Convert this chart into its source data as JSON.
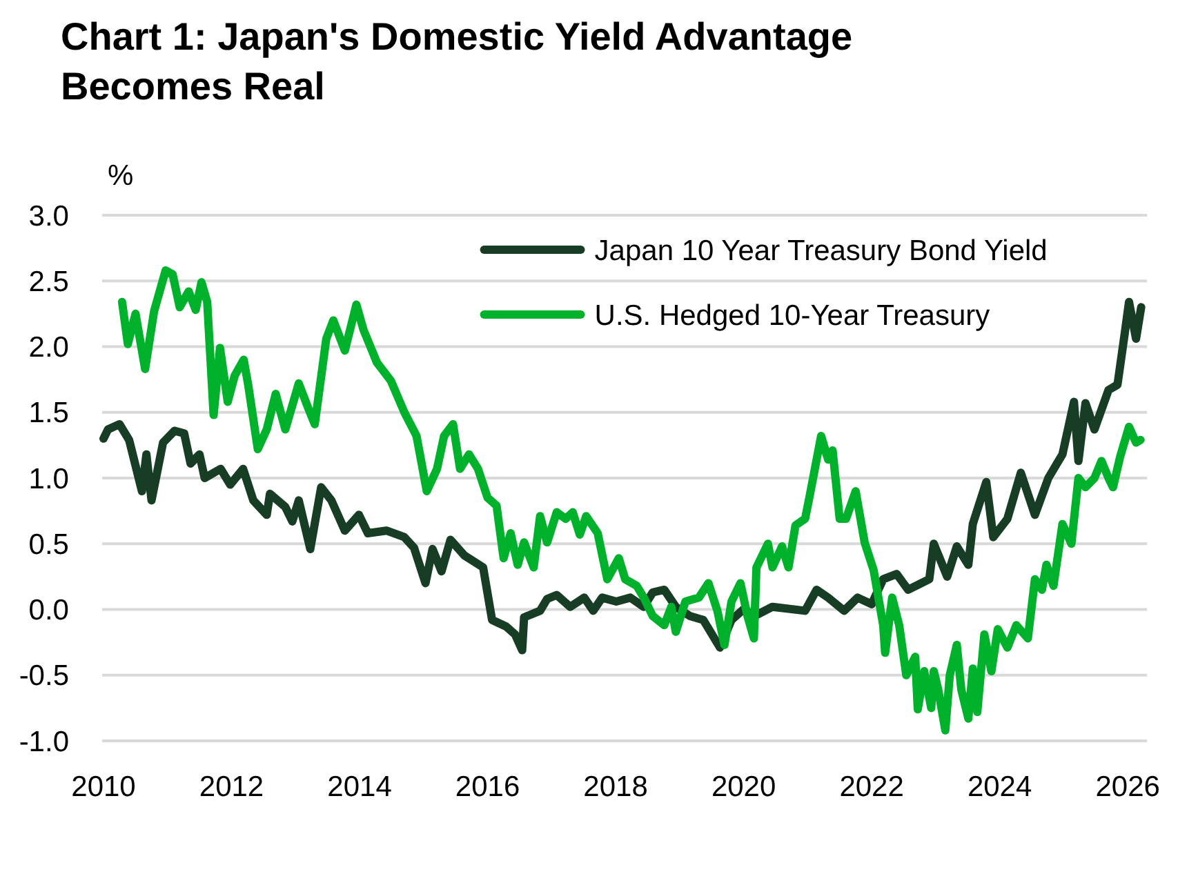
{
  "chart_data": {
    "type": "line",
    "title": "Chart 1: Japan's Domestic Yield Advantage Becomes Real",
    "ylabel": "%",
    "xlim": [
      2010,
      2026.3
    ],
    "xticks": [
      2010,
      2012,
      2014,
      2016,
      2018,
      2020,
      2022,
      2024,
      2026
    ],
    "ylim": [
      -1.0,
      3.0
    ],
    "yticks": [
      {
        "value": -1,
        "label": "-1.0"
      },
      -0.5,
      {
        "value": 0,
        "label": "0.0"
      },
      0.5,
      {
        "value": 1,
        "label": "1.0"
      },
      1.5,
      {
        "value": 2,
        "label": "2.0"
      },
      2.5,
      {
        "value": 3,
        "label": "3.0"
      }
    ],
    "grid": "y",
    "legend": "top right",
    "series": [
      {
        "name": "Japan 10 Year Treasury Bond Yield",
        "color": "#183d25",
        "x": [
          2010.0,
          2010.07,
          2010.25,
          2010.4,
          2010.6,
          2010.67,
          2010.75,
          2010.93,
          2011.11,
          2011.26,
          2011.36,
          2011.5,
          2011.58,
          2011.83,
          2011.98,
          2012.18,
          2012.34,
          2012.55,
          2012.6,
          2012.84,
          2012.95,
          2013.05,
          2013.23,
          2013.4,
          2013.56,
          2013.77,
          2013.99,
          2014.13,
          2014.42,
          2014.7,
          2014.85,
          2015.03,
          2015.14,
          2015.28,
          2015.42,
          2015.64,
          2015.93,
          2016.07,
          2016.29,
          2016.43,
          2016.54,
          2016.57,
          2016.82,
          2016.93,
          2017.08,
          2017.29,
          2017.51,
          2017.65,
          2017.79,
          2018.01,
          2018.23,
          2018.44,
          2018.58,
          2018.76,
          2018.94,
          2019.16,
          2019.37,
          2019.63,
          2019.81,
          2020.02,
          2020.13,
          2020.45,
          2020.96,
          2021.14,
          2021.32,
          2021.57,
          2021.78,
          2022.0,
          2022.18,
          2022.39,
          2022.57,
          2022.9,
          2022.97,
          2023.18,
          2023.33,
          2023.51,
          2023.58,
          2023.79,
          2023.9,
          2024.12,
          2024.33,
          2024.55,
          2024.76,
          2024.98,
          2025.16,
          2025.23,
          2025.34,
          2025.48,
          2025.7,
          2025.84,
          2025.95,
          2026.02,
          2026.13,
          2026.21
        ],
        "values": [
          1.3,
          1.37,
          1.41,
          1.29,
          0.9,
          1.18,
          0.83,
          1.27,
          1.36,
          1.34,
          1.11,
          1.18,
          1.0,
          1.07,
          0.95,
          1.07,
          0.83,
          0.72,
          0.88,
          0.78,
          0.67,
          0.83,
          0.46,
          0.93,
          0.83,
          0.6,
          0.72,
          0.58,
          0.6,
          0.55,
          0.47,
          0.2,
          0.46,
          0.29,
          0.53,
          0.41,
          0.32,
          -0.08,
          -0.13,
          -0.19,
          -0.31,
          -0.06,
          -0.01,
          0.08,
          0.11,
          0.02,
          0.09,
          -0.01,
          0.09,
          0.06,
          0.09,
          0.02,
          0.13,
          0.15,
          0.02,
          -0.05,
          -0.08,
          -0.29,
          -0.08,
          0.01,
          -0.06,
          0.02,
          -0.01,
          0.15,
          0.09,
          -0.01,
          0.09,
          0.04,
          0.23,
          0.27,
          0.15,
          0.23,
          0.5,
          0.25,
          0.48,
          0.34,
          0.65,
          0.97,
          0.55,
          0.69,
          1.04,
          0.72,
          1.0,
          1.18,
          1.58,
          1.13,
          1.57,
          1.37,
          1.67,
          1.71,
          2.09,
          2.34,
          2.06,
          2.3
        ]
      },
      {
        "name": "U.S. Hedged 10-Year Treasury",
        "color": "#00b22b",
        "x": [
          2010.29,
          2010.38,
          2010.5,
          2010.65,
          2010.79,
          2010.97,
          2011.08,
          2011.19,
          2011.33,
          2011.44,
          2011.53,
          2011.62,
          2011.72,
          2011.82,
          2011.94,
          2012.05,
          2012.19,
          2012.26,
          2012.41,
          2012.55,
          2012.69,
          2012.84,
          2013.05,
          2013.2,
          2013.3,
          2013.48,
          2013.59,
          2013.77,
          2013.95,
          2014.06,
          2014.27,
          2014.49,
          2014.7,
          2014.89,
          2015.05,
          2015.21,
          2015.32,
          2015.46,
          2015.57,
          2015.71,
          2015.85,
          2016.0,
          2016.14,
          2016.25,
          2016.36,
          2016.47,
          2016.57,
          2016.72,
          2016.82,
          2016.93,
          2017.08,
          2017.22,
          2017.33,
          2017.44,
          2017.54,
          2017.72,
          2017.87,
          2018.05,
          2018.15,
          2018.33,
          2018.44,
          2018.58,
          2018.76,
          2018.87,
          2018.94,
          2019.09,
          2019.3,
          2019.45,
          2019.59,
          2019.7,
          2019.81,
          2019.95,
          2020.06,
          2020.16,
          2020.2,
          2020.38,
          2020.45,
          2020.6,
          2020.7,
          2020.81,
          2020.96,
          2021.03,
          2021.21,
          2021.32,
          2021.39,
          2021.5,
          2021.6,
          2021.75,
          2021.89,
          2022.03,
          2022.18,
          2022.21,
          2022.32,
          2022.43,
          2022.54,
          2022.68,
          2022.72,
          2022.82,
          2022.93,
          2022.97,
          2023.04,
          2023.15,
          2023.22,
          2023.33,
          2023.4,
          2023.51,
          2023.58,
          2023.65,
          2023.76,
          2023.87,
          2023.97,
          2024.12,
          2024.26,
          2024.44,
          2024.55,
          2024.66,
          2024.73,
          2024.84,
          2024.98,
          2025.12,
          2025.23,
          2025.34,
          2025.48,
          2025.59,
          2025.7,
          2025.77,
          2025.88,
          2026.02,
          2026.13,
          2026.2
        ],
        "values": [
          2.34,
          2.02,
          2.25,
          1.83,
          2.27,
          2.58,
          2.55,
          2.3,
          2.42,
          2.28,
          2.49,
          2.34,
          1.48,
          1.99,
          1.58,
          1.78,
          1.9,
          1.71,
          1.22,
          1.37,
          1.64,
          1.37,
          1.72,
          1.53,
          1.41,
          2.06,
          2.2,
          1.97,
          2.32,
          2.13,
          1.88,
          1.74,
          1.5,
          1.32,
          0.9,
          1.07,
          1.32,
          1.41,
          1.07,
          1.18,
          1.07,
          0.85,
          0.79,
          0.39,
          0.58,
          0.34,
          0.51,
          0.32,
          0.71,
          0.51,
          0.74,
          0.69,
          0.74,
          0.57,
          0.71,
          0.58,
          0.23,
          0.39,
          0.23,
          0.18,
          0.09,
          -0.05,
          -0.12,
          0.02,
          -0.17,
          0.06,
          0.09,
          0.2,
          -0.01,
          -0.27,
          0.06,
          0.2,
          -0.05,
          -0.22,
          0.32,
          0.5,
          0.32,
          0.48,
          0.32,
          0.64,
          0.69,
          0.86,
          1.32,
          1.14,
          1.21,
          0.69,
          0.69,
          0.9,
          0.51,
          0.3,
          -0.12,
          -0.33,
          0.09,
          -0.12,
          -0.5,
          -0.36,
          -0.76,
          -0.47,
          -0.75,
          -0.47,
          -0.61,
          -0.92,
          -0.5,
          -0.27,
          -0.61,
          -0.83,
          -0.45,
          -0.78,
          -0.19,
          -0.47,
          -0.15,
          -0.29,
          -0.12,
          -0.22,
          0.23,
          0.15,
          0.34,
          0.18,
          0.65,
          0.5,
          1.0,
          0.93,
          1.0,
          1.13,
          1.0,
          0.93,
          1.16,
          1.39,
          1.27,
          1.29
        ]
      }
    ]
  }
}
